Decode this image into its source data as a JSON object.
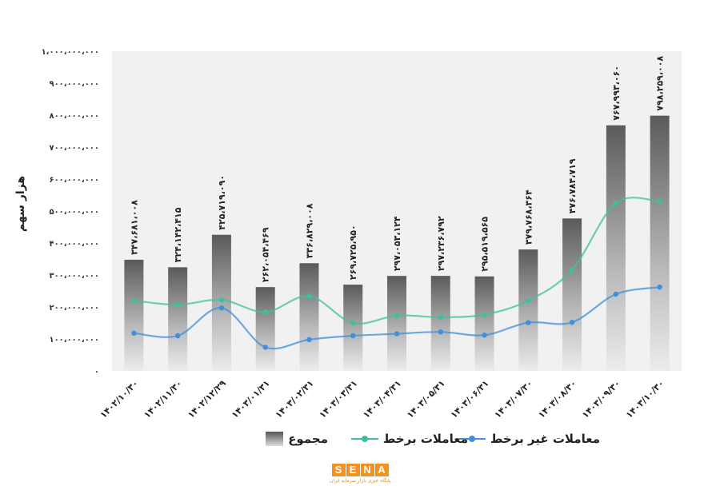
{
  "chart_data": {
    "type": "bar",
    "ylabel": "هزار سهم",
    "ylim": [
      0,
      1000000000
    ],
    "yticks": [
      {
        "value": 0,
        "label": "۰"
      },
      {
        "value": 100000000,
        "label": "۱۰۰،۰۰۰،۰۰۰"
      },
      {
        "value": 200000000,
        "label": "۲۰۰،۰۰۰،۰۰۰"
      },
      {
        "value": 300000000,
        "label": "۳۰۰،۰۰۰،۰۰۰"
      },
      {
        "value": 400000000,
        "label": "۴۰۰،۰۰۰،۰۰۰"
      },
      {
        "value": 500000000,
        "label": "۵۰۰،۰۰۰،۰۰۰"
      },
      {
        "value": 600000000,
        "label": "۶۰۰،۰۰۰،۰۰۰"
      },
      {
        "value": 700000000,
        "label": "۷۰۰،۰۰۰،۰۰۰"
      },
      {
        "value": 800000000,
        "label": "۸۰۰،۰۰۰،۰۰۰"
      },
      {
        "value": 900000000,
        "label": "۹۰۰،۰۰۰،۰۰۰"
      },
      {
        "value": 1000000000,
        "label": "۱،۰۰۰،۰۰۰،۰۰۰"
      }
    ],
    "categories": [
      "۱۴۰۲/۱۰/۳۰",
      "۱۴۰۲/۱۱/۳۰",
      "۱۴۰۲/۱۲/۲۹",
      "۱۴۰۳/۰۱/۳۱",
      "۱۴۰۳/۰۲/۳۱",
      "۱۴۰۳/۰۳/۳۱",
      "۱۴۰۳/۰۴/۳۱",
      "۱۴۰۳/۰۵/۳۱",
      "۱۴۰۳/۰۶/۳۱",
      "۱۴۰۳/۰۷/۳۰",
      "۱۴۰۳/۰۸/۳۰",
      "۱۴۰۳/۰۹/۳۰",
      "۱۴۰۳/۱۰/۳۰"
    ],
    "series": [
      {
        "name": "مجموع",
        "type": "bar",
        "values": [
          347681008,
          324142415,
          425719090,
          262054469,
          336829008,
          269725950,
          297053124,
          297236792,
          295519565,
          379768364,
          476784719,
          767993060,
          798259008
        ],
        "labels": [
          "۳۴۷،۶۸۱،۰۰۸",
          "۳۲۴،۱۴۲،۴۱۵",
          "۴۲۵،۷۱۹،۰۹۰",
          "۲۶۲،۰۵۴،۴۶۹",
          "۳۳۶،۸۲۹،۰۰۸",
          "۲۶۹،۷۲۵،۹۵۰",
          "۲۹۷،۰۵۳،۱۲۴",
          "۲۹۷،۲۳۶،۷۹۲",
          "۲۹۵،۵۱۹،۵۶۵",
          "۳۷۹،۷۶۸،۳۶۴",
          "۴۷۶،۷۸۴،۷۱۹",
          "۷۶۷،۹۹۳،۰۶۰",
          "۷۹۸،۲۵۹،۰۰۸"
        ],
        "color": "#666666"
      },
      {
        "name": "معاملات برخط",
        "type": "line",
        "values": [
          220000000,
          207000000,
          222000000,
          184000000,
          234000000,
          150000000,
          173000000,
          168000000,
          176000000,
          220000000,
          316000000,
          525000000,
          530000000
        ],
        "color": "#3fbf9f"
      },
      {
        "name": "معاملات غیر برخط",
        "type": "line",
        "values": [
          118000000,
          110000000,
          197000000,
          74000000,
          98000000,
          110000000,
          116000000,
          122000000,
          112000000,
          151000000,
          152000000,
          240000000,
          262000000
        ],
        "color": "#3f8fdc"
      }
    ],
    "legend": "bottom"
  },
  "logo": {
    "letters": [
      "S",
      "E",
      "N",
      "A"
    ],
    "subtitle": "پایگاه خبری بازار سرمایه ایران",
    "color": "#f39221"
  }
}
